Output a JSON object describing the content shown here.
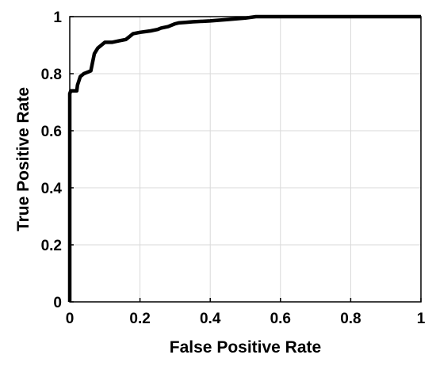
{
  "chart_data": {
    "type": "line",
    "title": "",
    "xlabel": "False Positive Rate",
    "ylabel": "True Positive Rate",
    "xlim": [
      0,
      1
    ],
    "ylim": [
      0,
      1
    ],
    "xticks": [
      "0",
      "0.2",
      "0.4",
      "0.6",
      "0.8",
      "1"
    ],
    "yticks": [
      "0",
      "0.2",
      "0.4",
      "0.6",
      "0.8",
      "1"
    ],
    "grid": true,
    "legend": "none",
    "colors": {
      "line": "#000000",
      "grid": "#d9d9d9",
      "axes": "#000000",
      "background": "#ffffff"
    },
    "series": [
      {
        "x": [
          0,
          0,
          0.003,
          0.02,
          0.022,
          0.03,
          0.04,
          0.06,
          0.065,
          0.07,
          0.08,
          0.09,
          0.1,
          0.12,
          0.14,
          0.16,
          0.17,
          0.18,
          0.2,
          0.23,
          0.25,
          0.26,
          0.28,
          0.3,
          0.31,
          0.33,
          0.35,
          0.4,
          0.45,
          0.48,
          0.5,
          0.53,
          1.0
        ],
        "y": [
          0,
          0.73,
          0.74,
          0.74,
          0.76,
          0.79,
          0.8,
          0.81,
          0.84,
          0.87,
          0.89,
          0.9,
          0.91,
          0.91,
          0.915,
          0.92,
          0.93,
          0.94,
          0.945,
          0.95,
          0.955,
          0.96,
          0.965,
          0.975,
          0.978,
          0.98,
          0.982,
          0.985,
          0.99,
          0.993,
          0.995,
          1.0,
          1.0
        ]
      }
    ]
  }
}
